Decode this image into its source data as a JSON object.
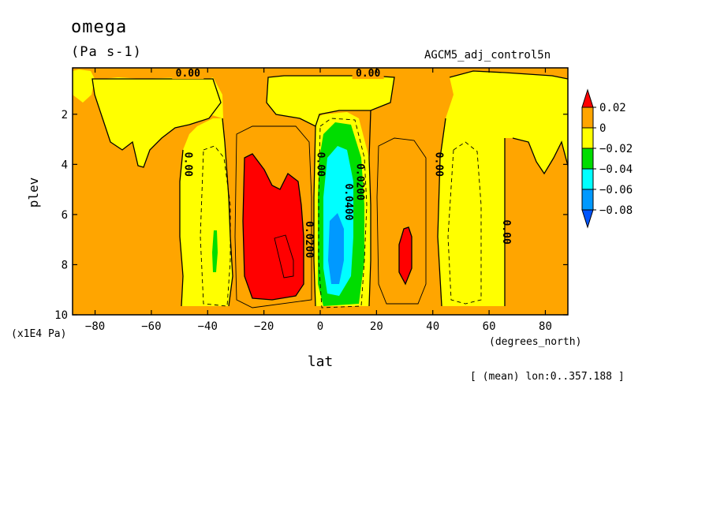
{
  "header": {
    "variable": "omega",
    "units": "(Pa s-1)",
    "run_name": "AGCM5_adj_control5n",
    "mean_note": "[ (mean) lon:0..357.188 ]"
  },
  "chart_data": {
    "type": "contour",
    "xlabel": "lat",
    "ylabel": "plev",
    "xunit": "(degrees_north)",
    "yunit": "(x1E4 Pa)",
    "xlim": [
      -88,
      88
    ],
    "ylim": [
      10,
      0.15
    ],
    "xticks": [
      -80,
      -60,
      -40,
      -20,
      0,
      20,
      40,
      60,
      80
    ],
    "yticks": [
      2,
      4,
      6,
      8,
      10
    ],
    "legend": {
      "position": "right",
      "labels": [
        "0.02",
        "0",
        "-0.02",
        "-0.04",
        "-0.06",
        "-0.08"
      ],
      "bands": [
        {
          "range": "> 0.02",
          "color": "#ff0000"
        },
        {
          "range": "0 to 0.02",
          "color": "#ffa500"
        },
        {
          "range": "-0.02 to 0",
          "color": "#ffff00"
        },
        {
          "range": "-0.04 to -0.02",
          "color": "#00dd00"
        },
        {
          "range": "-0.06 to -0.04",
          "color": "#00ffff"
        },
        {
          "range": "-0.08 to -0.06",
          "color": "#0099ff"
        },
        {
          "range": "< -0.08",
          "color": "#0055ff"
        }
      ]
    },
    "contour_labels": [
      {
        "text": "0.00",
        "lat": -47,
        "plev": 0.5
      },
      {
        "text": "0.00",
        "lat": 17,
        "plev": 0.5
      },
      {
        "text": "0.00",
        "lat": -48,
        "plev": 4.0
      },
      {
        "text": "0.00",
        "lat": -1,
        "plev": 4.0
      },
      {
        "text": "0.00",
        "lat": 41,
        "plev": 4.0
      },
      {
        "text": "0.00",
        "lat": 65,
        "plev": 6.7
      },
      {
        "text": "0.0200",
        "lat": -5,
        "plev": 7.0
      },
      {
        "text": "0.0400",
        "lat": 9,
        "plev": 5.5
      },
      {
        "text": "0.0200",
        "lat": 13,
        "plev": 4.7
      }
    ],
    "features": [
      {
        "sign": "positive",
        "max_band": "> 0.02",
        "lat_range": [
          -27,
          -7
        ],
        "plev_range": [
          3.5,
          9.2
        ]
      },
      {
        "sign": "negative",
        "min_band": "< -0.08",
        "lat_range": [
          1,
          15
        ],
        "plev_range": [
          2.5,
          9.5
        ]
      },
      {
        "sign": "positive",
        "max_band": "> 0.02",
        "lat_range": [
          27,
          33
        ],
        "plev_range": [
          6.5,
          8.8
        ]
      },
      {
        "sign": "negative",
        "min_band": "-0.04 to -0.02",
        "lat_range": [
          -38,
          -36
        ],
        "plev_range": [
          6.7,
          8.6
        ]
      }
    ]
  }
}
